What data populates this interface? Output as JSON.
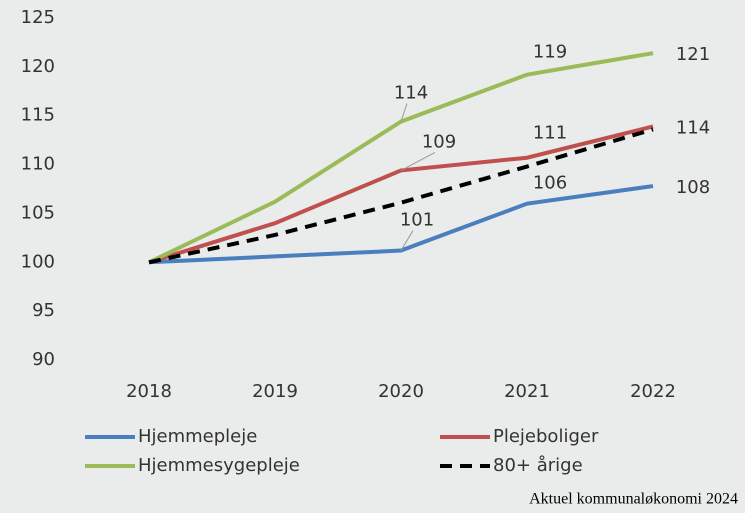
{
  "chart_data": {
    "type": "line",
    "categories": [
      "2018",
      "2019",
      "2020",
      "2021",
      "2022"
    ],
    "series": [
      {
        "name": "Hjemmepleje",
        "color": "#4a7ebf",
        "dash": false,
        "values": [
          100,
          100.6,
          101.2,
          106,
          107.8
        ],
        "value_labels": [
          null,
          null,
          "101",
          "106",
          "108"
        ]
      },
      {
        "name": "Plejeboliger",
        "color": "#c0504d",
        "dash": false,
        "values": [
          100,
          104,
          109.4,
          110.7,
          113.9
        ],
        "value_labels": [
          null,
          null,
          "109",
          "111",
          "114"
        ]
      },
      {
        "name": "Hjemmesygepleje",
        "color": "#9bbb59",
        "dash": false,
        "values": [
          100,
          106.2,
          114.4,
          119.2,
          121.4
        ],
        "value_labels": [
          null,
          null,
          "114",
          "119",
          "121"
        ]
      },
      {
        "name": "80+ årige",
        "color": "#000000",
        "dash": true,
        "values": [
          100,
          102.8,
          106.1,
          109.8,
          113.6
        ]
      }
    ],
    "ylim": [
      90,
      125
    ],
    "yticks": [
      90,
      95,
      100,
      105,
      110,
      115,
      120,
      125
    ],
    "source": "Aktuel kommunaløkonomi 2024"
  }
}
